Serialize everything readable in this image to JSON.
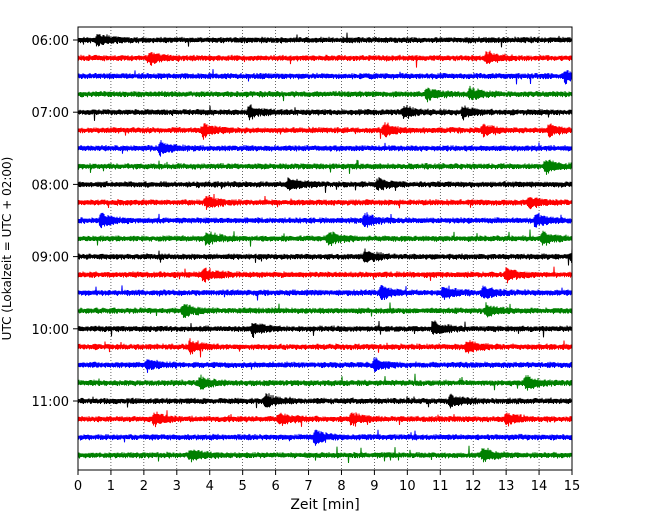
{
  "chart_data": {
    "type": "line",
    "title": "",
    "xlabel": "Zeit  [min]",
    "ylabel": "UTC (Lokalzeit = UTC + 02:00)",
    "xlim": [
      0,
      15
    ],
    "x_ticks": [
      "0",
      "1",
      "2",
      "3",
      "4",
      "5",
      "6",
      "7",
      "8",
      "9",
      "10",
      "11",
      "12",
      "13",
      "14",
      "15"
    ],
    "y_tick_labels": [
      "06:00",
      "07:00",
      "08:00",
      "09:00",
      "10:00",
      "11:00"
    ],
    "grid": "vertical-dotted",
    "trace_interval_min": 15,
    "color_cycle": [
      "#000000",
      "#ff0000",
      "#0000ff",
      "#008000"
    ],
    "traces": [
      {
        "start": "06:00",
        "events_min": [
          0.6
        ]
      },
      {
        "start": "06:15",
        "events_min": [
          2.2,
          12.4
        ]
      },
      {
        "start": "06:30",
        "events_min": [
          14.8
        ]
      },
      {
        "start": "06:45",
        "events_min": [
          10.6,
          11.9
        ]
      },
      {
        "start": "07:00",
        "events_min": [
          5.2,
          9.9,
          11.7
        ]
      },
      {
        "start": "07:15",
        "events_min": [
          3.8,
          9.3,
          12.3,
          14.3
        ]
      },
      {
        "start": "07:30",
        "events_min": [
          2.5
        ]
      },
      {
        "start": "07:45",
        "events_min": [
          14.2
        ]
      },
      {
        "start": "08:00",
        "events_min": [
          6.4,
          9.1
        ]
      },
      {
        "start": "08:15",
        "events_min": [
          3.9,
          13.7
        ]
      },
      {
        "start": "08:30",
        "events_min": [
          0.7,
          8.7,
          13.9
        ]
      },
      {
        "start": "08:45",
        "events_min": [
          3.9,
          7.6,
          14.1
        ]
      },
      {
        "start": "09:00",
        "events_min": [
          8.7,
          15.0
        ]
      },
      {
        "start": "09:15",
        "events_min": [
          3.8,
          13.0
        ]
      },
      {
        "start": "09:30",
        "events_min": [
          9.2,
          11.1,
          12.3
        ]
      },
      {
        "start": "09:45",
        "events_min": [
          3.2,
          12.4
        ]
      },
      {
        "start": "10:00",
        "events_min": [
          5.3,
          10.8
        ]
      },
      {
        "start": "10:15",
        "events_min": [
          3.4,
          11.8
        ]
      },
      {
        "start": "10:30",
        "events_min": [
          2.1,
          9.0
        ]
      },
      {
        "start": "10:45",
        "events_min": [
          3.7,
          13.6
        ]
      },
      {
        "start": "11:00",
        "events_min": [
          5.7,
          11.3
        ]
      },
      {
        "start": "11:15",
        "events_min": [
          2.3,
          6.1,
          8.3,
          13.0
        ]
      },
      {
        "start": "11:30",
        "events_min": [
          7.2
        ]
      },
      {
        "start": "11:45",
        "events_min": [
          3.4,
          12.3
        ]
      }
    ]
  }
}
